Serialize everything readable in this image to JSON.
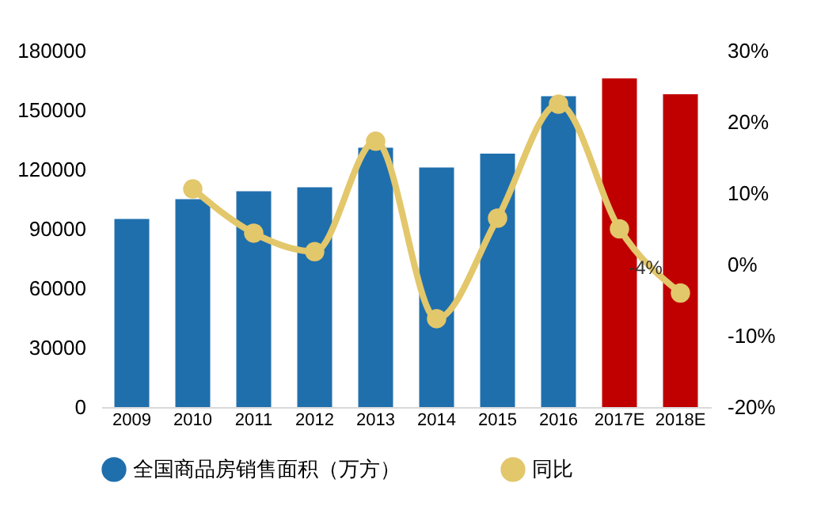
{
  "chart_data": {
    "type": "bar",
    "categories": [
      "2009",
      "2010",
      "2011",
      "2012",
      "2013",
      "2014",
      "2015",
      "2016",
      "2017E",
      "2018E"
    ],
    "series": [
      {
        "name": "全国商品房销售面积（万方）",
        "color": "#1f6fad",
        "colors": [
          "#1f6fad",
          "#1f6fad",
          "#1f6fad",
          "#1f6fad",
          "#1f6fad",
          "#1f6fad",
          "#1f6fad",
          "#1f6fad",
          "#c00000",
          "#c00000"
        ],
        "values": [
          95000,
          105000,
          109000,
          111000,
          131000,
          121000,
          128000,
          157000,
          166000,
          158000
        ]
      },
      {
        "type": "line",
        "name": "同比",
        "axis": "y2",
        "color": "#e3c76b",
        "marker": "circle",
        "values": [
          null,
          10.6,
          4.4,
          1.8,
          17.3,
          -7.6,
          6.5,
          22.5,
          5,
          -4
        ],
        "value_labels": [
          null,
          null,
          null,
          null,
          null,
          null,
          null,
          null,
          null,
          "-4%"
        ]
      }
    ],
    "ylim": [
      0,
      180000
    ],
    "yticks": [
      0,
      30000,
      60000,
      90000,
      120000,
      150000,
      180000
    ],
    "y2lim": [
      -20,
      30
    ],
    "y2ticks": [
      {
        "value": -20,
        "label": "-20%"
      },
      {
        "value": -10,
        "label": "-10%"
      },
      {
        "value": 0,
        "label": "0%"
      },
      {
        "value": 10,
        "label": "10%"
      },
      {
        "value": 20,
        "label": "20%"
      },
      {
        "value": 30,
        "label": "30%"
      }
    ],
    "legend": "bottom",
    "grid": false
  }
}
